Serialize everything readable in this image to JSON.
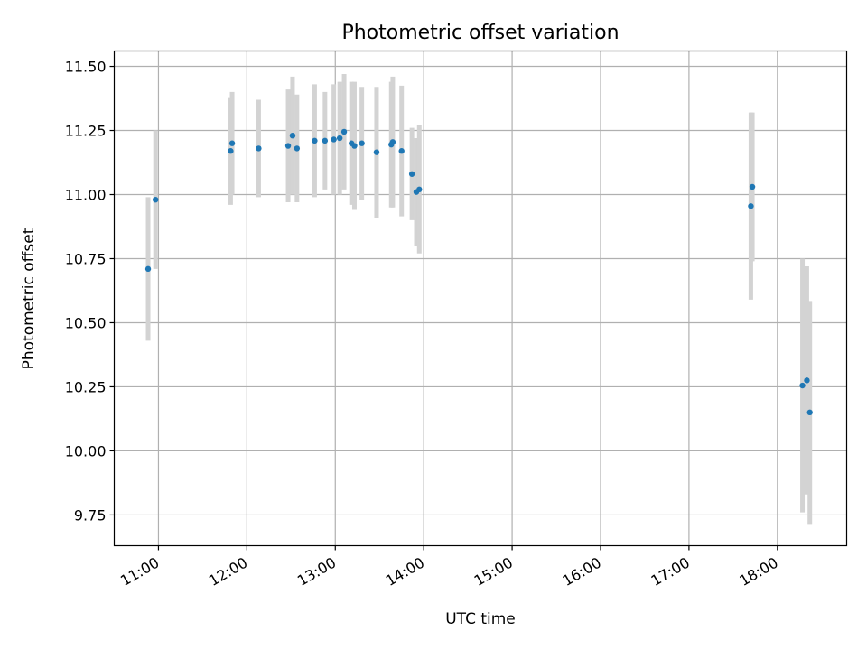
{
  "chart_data": {
    "type": "scatter",
    "title": "Photometric offset variation",
    "xlabel": "UTC time",
    "ylabel": "Photometric offset",
    "x_ticks": [
      "11:00",
      "12:00",
      "13:00",
      "14:00",
      "15:00",
      "16:00",
      "17:00",
      "18:00"
    ],
    "y_ticks": [
      "9.75",
      "10.00",
      "10.25",
      "10.50",
      "10.75",
      "11.00",
      "11.25",
      "11.50"
    ],
    "xlim": [
      "10:30",
      "18:47"
    ],
    "ylim": [
      9.63,
      11.56
    ],
    "grid": true,
    "colors": {
      "points": "#1f77b4",
      "errorbars": "#d3d3d3",
      "grid": "#b0b0b0"
    },
    "points": [
      {
        "time": "10:53",
        "y": 10.71,
        "err": 0.28
      },
      {
        "time": "10:58",
        "y": 10.98,
        "err": 0.27
      },
      {
        "time": "11:49",
        "y": 11.17,
        "err": 0.21
      },
      {
        "time": "11:50",
        "y": 11.2,
        "err": 0.2
      },
      {
        "time": "12:08",
        "y": 11.18,
        "err": 0.19
      },
      {
        "time": "12:28",
        "y": 11.19,
        "err": 0.22
      },
      {
        "time": "12:31",
        "y": 11.23,
        "err": 0.23
      },
      {
        "time": "12:34",
        "y": 11.18,
        "err": 0.21
      },
      {
        "time": "12:46",
        "y": 11.21,
        "err": 0.22
      },
      {
        "time": "12:53",
        "y": 11.21,
        "err": 0.19
      },
      {
        "time": "12:59",
        "y": 11.215,
        "err": 0.215
      },
      {
        "time": "13:03",
        "y": 11.22,
        "err": 0.22
      },
      {
        "time": "13:06",
        "y": 11.245,
        "err": 0.225
      },
      {
        "time": "13:11",
        "y": 11.2,
        "err": 0.24
      },
      {
        "time": "13:13",
        "y": 11.19,
        "err": 0.25
      },
      {
        "time": "13:18",
        "y": 11.2,
        "err": 0.22
      },
      {
        "time": "13:28",
        "y": 11.165,
        "err": 0.255
      },
      {
        "time": "13:38",
        "y": 11.195,
        "err": 0.245
      },
      {
        "time": "13:39",
        "y": 11.205,
        "err": 0.255
      },
      {
        "time": "13:45",
        "y": 11.17,
        "err": 0.255
      },
      {
        "time": "13:52",
        "y": 11.08,
        "err": 0.18
      },
      {
        "time": "13:55",
        "y": 11.01,
        "err": 0.21
      },
      {
        "time": "13:57",
        "y": 11.02,
        "err": 0.25
      },
      {
        "time": "17:42",
        "y": 10.955,
        "err": 0.365
      },
      {
        "time": "17:43",
        "y": 11.03,
        "err": 0.29
      },
      {
        "time": "18:17",
        "y": 10.255,
        "err": 0.495
      },
      {
        "time": "18:20",
        "y": 10.275,
        "err": 0.445
      },
      {
        "time": "18:22",
        "y": 10.15,
        "err": 0.435
      }
    ]
  }
}
